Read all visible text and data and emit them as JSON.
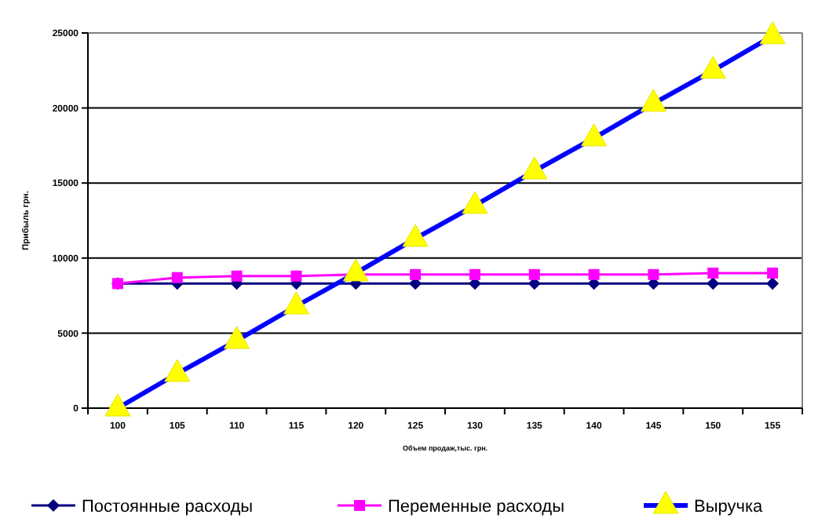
{
  "chart_data": {
    "type": "line",
    "xlabel": "Объем продаж,тыс. грн.",
    "ylabel": "Прибыль грн.",
    "categories": [
      "100",
      "105",
      "110",
      "115",
      "120",
      "125",
      "130",
      "135",
      "140",
      "145",
      "150",
      "155"
    ],
    "series": [
      {
        "name": "Постоянные расходы",
        "color": "#000080",
        "marker": "diamond",
        "values": [
          8300,
          8300,
          8300,
          8300,
          8300,
          8300,
          8300,
          8300,
          8300,
          8300,
          8300,
          8300
        ]
      },
      {
        "name": "Переменные расходы",
        "color": "#ff00ff",
        "marker": "square",
        "values": [
          8300,
          8700,
          8800,
          8800,
          8900,
          8900,
          8900,
          8900,
          8900,
          8900,
          9000,
          9000
        ]
      },
      {
        "name": "Выручка",
        "color": "#0000ff",
        "marker": "triangle",
        "values": [
          0,
          2300,
          4500,
          6800,
          9000,
          11300,
          13500,
          15800,
          18000,
          20300,
          22500,
          24800
        ]
      }
    ],
    "ylim": [
      0,
      25000
    ],
    "yticks": [
      0,
      5000,
      10000,
      15000,
      20000,
      25000
    ],
    "grid": "y",
    "legend": "bottom"
  }
}
